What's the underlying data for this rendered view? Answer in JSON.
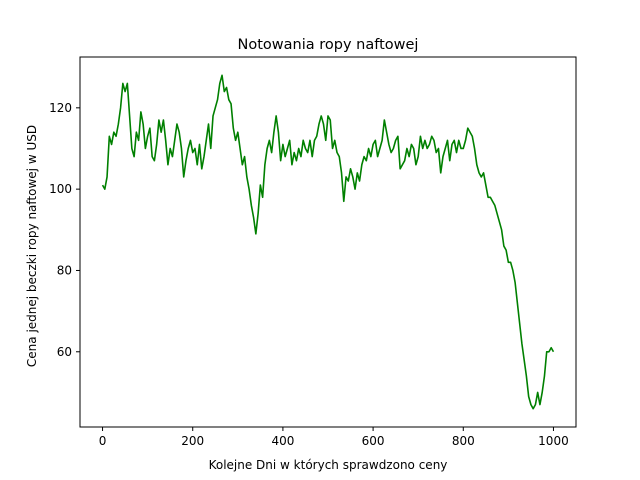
{
  "chart_data": {
    "type": "line",
    "title": "Notowania ropy naftowej",
    "xlabel": "Kolejne Dni w których sprawdzono ceny",
    "ylabel": "Cena jednej beczki ropy naftowej w USD",
    "xlim": [
      -50,
      1050
    ],
    "ylim": [
      41.5,
      132.5
    ],
    "xticks": [
      0,
      200,
      400,
      600,
      800,
      1000
    ],
    "yticks": [
      60,
      80,
      100,
      120
    ],
    "grid": false,
    "series": [
      {
        "color": "#008000",
        "x": [
          0,
          5,
          10,
          15,
          20,
          25,
          30,
          35,
          40,
          45,
          50,
          55,
          60,
          65,
          70,
          75,
          80,
          85,
          90,
          95,
          100,
          105,
          110,
          115,
          120,
          125,
          130,
          135,
          140,
          145,
          150,
          155,
          160,
          165,
          170,
          175,
          180,
          185,
          190,
          195,
          200,
          205,
          210,
          215,
          220,
          225,
          230,
          235,
          240,
          245,
          250,
          255,
          260,
          265,
          270,
          275,
          280,
          285,
          290,
          295,
          300,
          305,
          310,
          315,
          320,
          325,
          330,
          335,
          340,
          345,
          350,
          355,
          360,
          365,
          370,
          375,
          380,
          385,
          390,
          395,
          400,
          405,
          410,
          415,
          420,
          425,
          430,
          435,
          440,
          445,
          450,
          455,
          460,
          465,
          470,
          475,
          480,
          485,
          490,
          495,
          500,
          505,
          510,
          515,
          520,
          525,
          530,
          535,
          540,
          545,
          550,
          555,
          560,
          565,
          570,
          575,
          580,
          585,
          590,
          595,
          600,
          605,
          610,
          615,
          620,
          625,
          630,
          635,
          640,
          645,
          650,
          655,
          660,
          665,
          670,
          675,
          680,
          685,
          690,
          695,
          700,
          705,
          710,
          715,
          720,
          725,
          730,
          735,
          740,
          745,
          750,
          755,
          760,
          765,
          770,
          775,
          780,
          785,
          790,
          795,
          800,
          805,
          810,
          815,
          820,
          825,
          830,
          835,
          840,
          845,
          850,
          855,
          860,
          865,
          870,
          875,
          880,
          885,
          890,
          895,
          900,
          905,
          910,
          915,
          920,
          925,
          930,
          935,
          940,
          945,
          950,
          955,
          960,
          965,
          970,
          975,
          980,
          985,
          990,
          995,
          1000
        ],
        "y": [
          101,
          100,
          103,
          113,
          111,
          114,
          113,
          116,
          120,
          126,
          124,
          126,
          118,
          110,
          108,
          114,
          112,
          119,
          116,
          110,
          113,
          115,
          108,
          107,
          111,
          117,
          114,
          117,
          112,
          106,
          110,
          108,
          112,
          116,
          114,
          110,
          103,
          107,
          110,
          112,
          109,
          110,
          106,
          111,
          105,
          108,
          112,
          116,
          110,
          118,
          120,
          122,
          126,
          128,
          124,
          125,
          122,
          121,
          115,
          112,
          114,
          110,
          106,
          108,
          103,
          100,
          96,
          93,
          89,
          94,
          101,
          98,
          106,
          110,
          112,
          109,
          114,
          118,
          114,
          107,
          111,
          108,
          110,
          112,
          106,
          109,
          107,
          110,
          108,
          112,
          110,
          109,
          112,
          108,
          112,
          113,
          116,
          118,
          116,
          112,
          118,
          117,
          110,
          112,
          109,
          108,
          104,
          97,
          103,
          102,
          105,
          103,
          100,
          104,
          102,
          106,
          108,
          107,
          110,
          108,
          111,
          112,
          108,
          110,
          112,
          117,
          114,
          111,
          109,
          110,
          112,
          113,
          105,
          106,
          107,
          110,
          108,
          111,
          110,
          106,
          108,
          113,
          110,
          112,
          110,
          111,
          113,
          112,
          109,
          110,
          104,
          108,
          110,
          112,
          107,
          111,
          112,
          109,
          112,
          110,
          110,
          112,
          115,
          114,
          113,
          110,
          106,
          104,
          103,
          104,
          101,
          98,
          98,
          97,
          96,
          94,
          92,
          90,
          86,
          85,
          82,
          82,
          80,
          77,
          72,
          67,
          62,
          58,
          54,
          49,
          47,
          46,
          47,
          50,
          47,
          50,
          54,
          60,
          60,
          61,
          60
        ]
      }
    ]
  }
}
